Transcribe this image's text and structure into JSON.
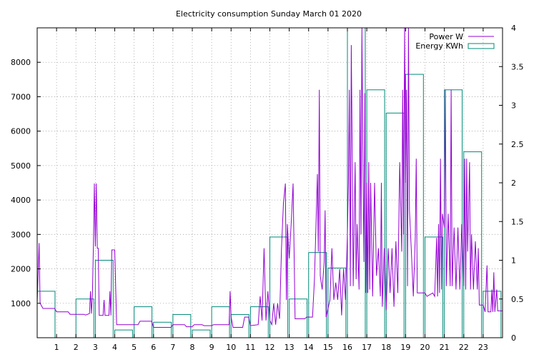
{
  "chart_data": {
    "type": "line",
    "title": "Electricity consumption Sunday March 01 2020",
    "xlabel": "",
    "ylabel": "",
    "xlim": [
      0,
      24
    ],
    "ylim": [
      0,
      9000
    ],
    "y2lim": [
      0,
      4
    ],
    "grid": true,
    "legend_position": "top-right",
    "x_ticks": [
      "1",
      "2",
      "3",
      "4",
      "5",
      "6",
      "7",
      "8",
      "9",
      "10",
      "11",
      "12",
      "13",
      "14",
      "15",
      "16",
      "17",
      "18",
      "19",
      "20",
      "21",
      "22",
      "23"
    ],
    "y_ticks": [
      "1000",
      "2000",
      "3000",
      "4000",
      "5000",
      "6000",
      "7000",
      "8000"
    ],
    "y2_ticks": [
      "0",
      "0.5",
      "1",
      "1.5",
      "2",
      "2.5",
      "3",
      "3.5",
      "4"
    ],
    "series": [
      {
        "name": "Power W",
        "axis": "left",
        "color": "#9400d3",
        "style": "line",
        "points": [
          [
            0.0,
            1000
          ],
          [
            0.1,
            2750
          ],
          [
            0.15,
            1000
          ],
          [
            0.3,
            850
          ],
          [
            0.9,
            850
          ],
          [
            1.0,
            750
          ],
          [
            1.6,
            750
          ],
          [
            1.7,
            680
          ],
          [
            2.4,
            680
          ],
          [
            2.5,
            660
          ],
          [
            2.7,
            700
          ],
          [
            2.75,
            1350
          ],
          [
            2.8,
            700
          ],
          [
            2.85,
            1250
          ],
          [
            2.9,
            2700
          ],
          [
            2.95,
            4480
          ],
          [
            3.0,
            2650
          ],
          [
            3.05,
            4480
          ],
          [
            3.1,
            2600
          ],
          [
            3.15,
            2600
          ],
          [
            3.2,
            650
          ],
          [
            3.4,
            650
          ],
          [
            3.45,
            1100
          ],
          [
            3.5,
            650
          ],
          [
            3.7,
            650
          ],
          [
            3.75,
            1350
          ],
          [
            3.8,
            650
          ],
          [
            3.85,
            2550
          ],
          [
            4.0,
            2550
          ],
          [
            4.1,
            380
          ],
          [
            5.2,
            380
          ],
          [
            5.3,
            480
          ],
          [
            5.9,
            480
          ],
          [
            6.0,
            300
          ],
          [
            6.9,
            300
          ],
          [
            7.0,
            380
          ],
          [
            7.6,
            380
          ],
          [
            7.7,
            320
          ],
          [
            8.0,
            320
          ],
          [
            8.1,
            380
          ],
          [
            8.5,
            380
          ],
          [
            8.6,
            350
          ],
          [
            9.0,
            350
          ],
          [
            9.1,
            380
          ],
          [
            9.9,
            380
          ],
          [
            9.95,
            1350
          ],
          [
            10.0,
            600
          ],
          [
            10.1,
            300
          ],
          [
            10.6,
            300
          ],
          [
            10.7,
            600
          ],
          [
            10.9,
            600
          ],
          [
            11.0,
            350
          ],
          [
            11.4,
            380
          ],
          [
            11.5,
            1200
          ],
          [
            11.6,
            500
          ],
          [
            11.7,
            2600
          ],
          [
            11.8,
            500
          ],
          [
            11.9,
            1350
          ],
          [
            12.0,
            500
          ],
          [
            12.1,
            380
          ],
          [
            12.2,
            1000
          ],
          [
            12.3,
            380
          ],
          [
            12.4,
            1000
          ],
          [
            12.5,
            550
          ],
          [
            12.6,
            2600
          ],
          [
            12.7,
            3900
          ],
          [
            12.8,
            4480
          ],
          [
            12.85,
            1100
          ],
          [
            12.9,
            3300
          ],
          [
            13.0,
            2300
          ],
          [
            13.1,
            3300
          ],
          [
            13.2,
            4480
          ],
          [
            13.3,
            550
          ],
          [
            13.8,
            550
          ],
          [
            13.9,
            600
          ],
          [
            14.2,
            600
          ],
          [
            14.3,
            1700
          ],
          [
            14.4,
            3700
          ],
          [
            14.45,
            4750
          ],
          [
            14.5,
            2500
          ],
          [
            14.55,
            7200
          ],
          [
            14.6,
            1800
          ],
          [
            14.7,
            1400
          ],
          [
            14.8,
            2200
          ],
          [
            14.85,
            3700
          ],
          [
            14.9,
            600
          ],
          [
            15.1,
            1100
          ],
          [
            15.2,
            2600
          ],
          [
            15.3,
            1100
          ],
          [
            15.4,
            1600
          ],
          [
            15.5,
            1100
          ],
          [
            15.6,
            2000
          ],
          [
            15.7,
            650
          ],
          [
            15.8,
            2000
          ],
          [
            15.9,
            1100
          ],
          [
            16.0,
            3000
          ],
          [
            16.05,
            4500
          ],
          [
            16.1,
            7200
          ],
          [
            16.15,
            1500
          ],
          [
            16.2,
            8500
          ],
          [
            16.25,
            5100
          ],
          [
            16.3,
            1500
          ],
          [
            16.4,
            5100
          ],
          [
            16.45,
            1700
          ],
          [
            16.5,
            3300
          ],
          [
            16.6,
            1400
          ],
          [
            16.65,
            7200
          ],
          [
            16.7,
            3000
          ],
          [
            16.75,
            9000
          ],
          [
            16.8,
            5100
          ],
          [
            16.85,
            2200
          ],
          [
            16.9,
            7100
          ],
          [
            16.95,
            1300
          ],
          [
            17.0,
            4500
          ],
          [
            17.05,
            1300
          ],
          [
            17.1,
            5100
          ],
          [
            17.15,
            1400
          ],
          [
            17.2,
            4500
          ],
          [
            17.3,
            1200
          ],
          [
            17.4,
            4500
          ],
          [
            17.5,
            1800
          ],
          [
            17.6,
            2600
          ],
          [
            17.7,
            1200
          ],
          [
            17.75,
            4500
          ],
          [
            17.8,
            900
          ],
          [
            17.9,
            2600
          ],
          [
            18.0,
            800
          ],
          [
            18.1,
            2600
          ],
          [
            18.2,
            1300
          ],
          [
            18.3,
            2600
          ],
          [
            18.4,
            900
          ],
          [
            18.5,
            2800
          ],
          [
            18.6,
            1300
          ],
          [
            18.7,
            5100
          ],
          [
            18.8,
            2500
          ],
          [
            18.85,
            7200
          ],
          [
            18.9,
            3000
          ],
          [
            18.95,
            9000
          ],
          [
            19.0,
            4500
          ],
          [
            19.05,
            7200
          ],
          [
            19.1,
            1500
          ],
          [
            19.15,
            9000
          ],
          [
            19.2,
            3700
          ],
          [
            19.3,
            2500
          ],
          [
            19.4,
            1200
          ],
          [
            19.5,
            2900
          ],
          [
            19.55,
            5200
          ],
          [
            19.6,
            1300
          ],
          [
            19.7,
            1300
          ],
          [
            20.0,
            1300
          ],
          [
            20.1,
            1200
          ],
          [
            20.4,
            1300
          ],
          [
            20.5,
            1200
          ],
          [
            20.6,
            2900
          ],
          [
            20.65,
            1200
          ],
          [
            20.7,
            3300
          ],
          [
            20.75,
            1300
          ],
          [
            20.8,
            5200
          ],
          [
            20.85,
            1400
          ],
          [
            20.9,
            3600
          ],
          [
            21.0,
            3200
          ],
          [
            21.05,
            7200
          ],
          [
            21.1,
            1500
          ],
          [
            21.2,
            3600
          ],
          [
            21.3,
            1500
          ],
          [
            21.35,
            7200
          ],
          [
            21.4,
            1500
          ],
          [
            21.5,
            3200
          ],
          [
            21.6,
            1400
          ],
          [
            21.7,
            3200
          ],
          [
            21.8,
            1400
          ],
          [
            21.9,
            3300
          ],
          [
            22.0,
            1500
          ],
          [
            22.05,
            5200
          ],
          [
            22.1,
            1400
          ],
          [
            22.15,
            5200
          ],
          [
            22.2,
            2500
          ],
          [
            22.3,
            5100
          ],
          [
            22.35,
            1400
          ],
          [
            22.4,
            3000
          ],
          [
            22.5,
            1400
          ],
          [
            22.6,
            2800
          ],
          [
            22.7,
            1400
          ],
          [
            22.75,
            2600
          ],
          [
            22.8,
            950
          ],
          [
            22.9,
            950
          ],
          [
            23.0,
            950
          ],
          [
            23.1,
            750
          ],
          [
            23.2,
            2100
          ],
          [
            23.25,
            750
          ],
          [
            23.4,
            750
          ],
          [
            23.45,
            1400
          ],
          [
            23.5,
            750
          ],
          [
            23.55,
            1900
          ],
          [
            23.6,
            750
          ],
          [
            23.7,
            1400
          ],
          [
            23.75,
            780
          ],
          [
            24.0,
            780
          ]
        ]
      },
      {
        "name": "Energy KWh",
        "axis": "right",
        "color": "#008b7a",
        "style": "boxes",
        "boxes": [
          [
            0.0,
            0.6
          ],
          [
            1.0,
            0.0
          ],
          [
            2.0,
            0.5
          ],
          [
            3.0,
            1.0
          ],
          [
            4.0,
            0.1
          ],
          [
            5.0,
            0.4
          ],
          [
            6.0,
            0.2
          ],
          [
            7.0,
            0.3
          ],
          [
            8.0,
            0.1
          ],
          [
            9.0,
            0.4
          ],
          [
            10.0,
            0.3
          ],
          [
            11.0,
            0.4
          ],
          [
            12.0,
            1.3
          ],
          [
            13.0,
            0.5
          ],
          [
            14.0,
            1.1
          ],
          [
            15.0,
            0.9
          ],
          [
            16.0,
            4.0
          ],
          [
            17.0,
            3.2
          ],
          [
            18.0,
            2.9
          ],
          [
            19.0,
            3.4
          ],
          [
            20.0,
            1.3
          ],
          [
            21.0,
            3.2
          ],
          [
            22.0,
            2.4
          ],
          [
            23.0,
            0.6
          ]
        ]
      }
    ]
  }
}
